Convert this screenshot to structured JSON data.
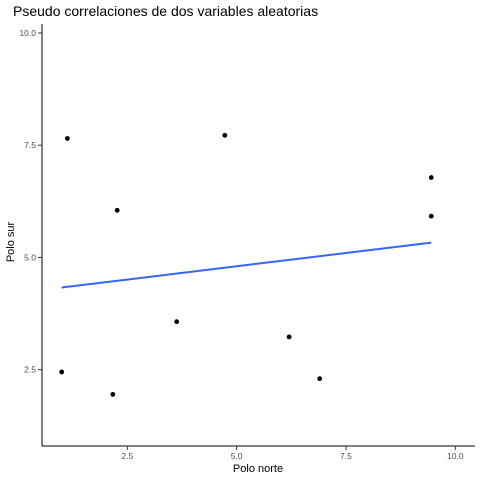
{
  "chart_data": {
    "type": "scatter",
    "title": "Pseudo correlaciones de dos variables aleatorias",
    "xlabel": "Polo norte",
    "ylabel": "Polo sur",
    "xlim": [
      0.55,
      10.45
    ],
    "ylim": [
      0.8,
      10.2
    ],
    "xticks": [
      2.5,
      5.0,
      7.5,
      10.0
    ],
    "xtick_labels": [
      "2.5",
      "5.0",
      "7.5",
      "10.0"
    ],
    "yticks": [
      2.5,
      5.0,
      7.5,
      10.0
    ],
    "ytick_labels": [
      "2.5",
      "5.0",
      "7.5",
      "10.0"
    ],
    "grid": false,
    "points": [
      {
        "x": 1.0,
        "y": 2.45
      },
      {
        "x": 1.13,
        "y": 7.65
      },
      {
        "x": 2.17,
        "y": 1.95
      },
      {
        "x": 2.27,
        "y": 6.05
      },
      {
        "x": 3.63,
        "y": 3.57
      },
      {
        "x": 4.73,
        "y": 7.72
      },
      {
        "x": 6.2,
        "y": 3.23
      },
      {
        "x": 6.9,
        "y": 2.3
      },
      {
        "x": 9.45,
        "y": 6.78
      },
      {
        "x": 9.45,
        "y": 5.92
      }
    ],
    "trend_line": {
      "method": "lm",
      "x": [
        1.0,
        9.45
      ],
      "y": [
        4.33,
        5.33
      ]
    },
    "point_color": "#000000",
    "trend_color": "#3366FF"
  }
}
